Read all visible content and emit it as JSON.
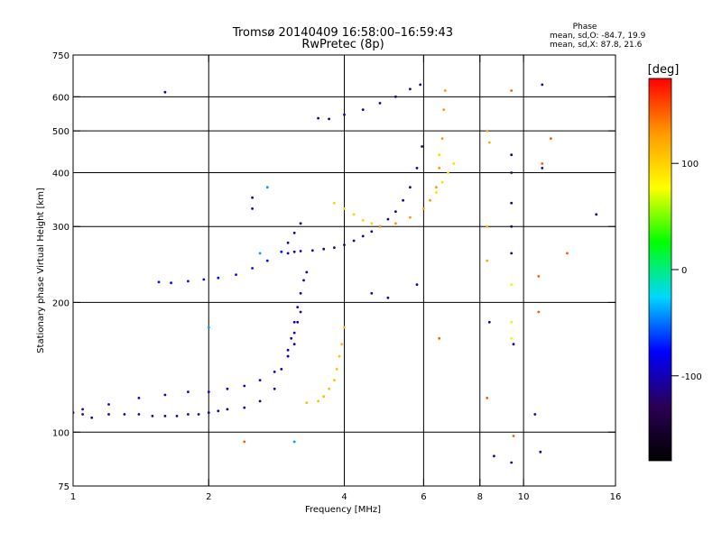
{
  "chart_data": {
    "type": "scatter",
    "title": "Tromsø 20140409 16:58:00–16:59:43",
    "subtitle": "RwPretec (8p)",
    "xlabel": "Frequency [MHz]",
    "ylabel": "Stationary phase Virtual Height [km]",
    "x_scale": "log",
    "y_scale": "log",
    "xlim": [
      1,
      16
    ],
    "ylim": [
      75,
      750
    ],
    "x_ticks": [
      1,
      2,
      4,
      6,
      8,
      10,
      16
    ],
    "x_grid": [
      2,
      4,
      6,
      8,
      10
    ],
    "x_tick_labels": [
      "1",
      "2",
      "4",
      "6",
      "8",
      "10",
      "16"
    ],
    "y_ticks": [
      75,
      100,
      200,
      300,
      400,
      500,
      600,
      750
    ],
    "y_grid": [
      100,
      200,
      300,
      400,
      500,
      600
    ],
    "y_tick_labels": [
      "75",
      "100",
      "200",
      "300",
      "400",
      "500",
      "600",
      "750"
    ],
    "grid": true,
    "stats": {
      "heading": "Phase",
      "line_o": "mean, sd,O: -84.7, 19.9",
      "line_x": "mean, sd,X:  87.8, 21.6"
    },
    "colorbar": {
      "label": "[deg]",
      "range": [
        -180,
        180
      ],
      "ticks": [
        100,
        0,
        -100
      ],
      "tick_labels": [
        "100",
        "0",
        "-100"
      ],
      "colors": [
        "#000000",
        "#2a0055",
        "#0000ff",
        "#00d8ff",
        "#00ff00",
        "#ffff00",
        "#ff9900",
        "#ff0000"
      ]
    },
    "traces": [
      {
        "name": "",
        "phase": -110,
        "points": [
          [
            1.0,
            111
          ],
          [
            1.05,
            110
          ],
          [
            1.1,
            108
          ],
          [
            1.2,
            110
          ],
          [
            1.3,
            110
          ],
          [
            1.4,
            110
          ],
          [
            1.5,
            109
          ],
          [
            1.6,
            109
          ],
          [
            1.7,
            109
          ],
          [
            1.8,
            110
          ],
          [
            1.9,
            110
          ],
          [
            2.0,
            111
          ],
          [
            2.1,
            112
          ],
          [
            2.2,
            113
          ],
          [
            2.4,
            114
          ],
          [
            2.6,
            118
          ],
          [
            2.8,
            126
          ],
          [
            2.9,
            140
          ],
          [
            3.0,
            155
          ],
          [
            3.1,
            170
          ],
          [
            3.15,
            180
          ],
          [
            3.2,
            190
          ]
        ]
      },
      {
        "name": "",
        "phase": -90,
        "points": [
          [
            1.05,
            113
          ],
          [
            1.2,
            116
          ],
          [
            1.4,
            120
          ],
          [
            1.6,
            122
          ],
          [
            1.8,
            124
          ],
          [
            2.0,
            124
          ],
          [
            2.2,
            126
          ],
          [
            2.4,
            128
          ],
          [
            2.6,
            132
          ],
          [
            2.8,
            138
          ],
          [
            3.0,
            150
          ],
          [
            3.1,
            160
          ]
        ]
      },
      {
        "name": "",
        "phase": -100,
        "points": [
          [
            3.0,
            150
          ],
          [
            3.05,
            165
          ],
          [
            3.1,
            180
          ],
          [
            3.15,
            195
          ],
          [
            3.2,
            210
          ],
          [
            3.25,
            225
          ],
          [
            3.3,
            235
          ]
        ]
      },
      {
        "name": "",
        "phase": 110,
        "points": [
          [
            3.3,
            117
          ],
          [
            3.5,
            118
          ],
          [
            3.6,
            121
          ],
          [
            3.7,
            126
          ],
          [
            3.8,
            132
          ],
          [
            3.85,
            140
          ],
          [
            3.9,
            150
          ],
          [
            3.95,
            160
          ],
          [
            4.0,
            175
          ]
        ]
      },
      {
        "name": "",
        "phase": -75,
        "points": [
          [
            1.55,
            223
          ],
          [
            1.65,
            222
          ],
          [
            1.8,
            224
          ],
          [
            1.95,
            226
          ],
          [
            2.1,
            228
          ],
          [
            2.3,
            232
          ],
          [
            2.5,
            240
          ],
          [
            2.7,
            250
          ],
          [
            2.9,
            262
          ]
        ]
      },
      {
        "name": "",
        "phase": -110,
        "points": [
          [
            3.0,
            260
          ],
          [
            3.1,
            262
          ],
          [
            3.2,
            263
          ],
          [
            3.4,
            264
          ],
          [
            3.6,
            266
          ],
          [
            3.8,
            268
          ],
          [
            4.0,
            272
          ],
          [
            4.2,
            278
          ],
          [
            4.4,
            285
          ],
          [
            4.6,
            292
          ],
          [
            4.8,
            300
          ],
          [
            5.0,
            312
          ],
          [
            5.2,
            325
          ],
          [
            5.4,
            345
          ],
          [
            5.6,
            370
          ],
          [
            5.8,
            410
          ],
          [
            5.95,
            460
          ]
        ]
      },
      {
        "name": "",
        "phase": -110,
        "points": [
          [
            3.0,
            275
          ],
          [
            3.1,
            290
          ],
          [
            3.2,
            305
          ]
        ]
      },
      {
        "name": "",
        "phase": 130,
        "points": [
          [
            4.8,
            300
          ],
          [
            5.2,
            305
          ],
          [
            5.6,
            315
          ],
          [
            6.0,
            330
          ],
          [
            6.2,
            345
          ],
          [
            6.4,
            370
          ],
          [
            6.5,
            410
          ],
          [
            6.6,
            480
          ],
          [
            6.65,
            560
          ],
          [
            6.7,
            620
          ]
        ]
      },
      {
        "name": "",
        "phase": 95,
        "points": [
          [
            6.4,
            360
          ],
          [
            6.6,
            380
          ],
          [
            6.8,
            400
          ],
          [
            7.0,
            420
          ],
          [
            6.5,
            440
          ]
        ]
      },
      {
        "name": "",
        "phase": 100,
        "points": [
          [
            3.8,
            340
          ],
          [
            4.0,
            330
          ],
          [
            4.2,
            320
          ],
          [
            4.4,
            310
          ],
          [
            4.6,
            305
          ]
        ]
      },
      {
        "name": "",
        "phase": -110,
        "points": [
          [
            3.5,
            535
          ],
          [
            3.7,
            533
          ],
          [
            4.0,
            545
          ],
          [
            4.4,
            560
          ],
          [
            4.8,
            580
          ],
          [
            5.2,
            600
          ],
          [
            5.6,
            625
          ],
          [
            5.9,
            640
          ]
        ]
      },
      {
        "name": "",
        "phase": 120,
        "points": [
          [
            8.3,
            500
          ],
          [
            8.4,
            470
          ],
          [
            8.3,
            300
          ],
          [
            8.3,
            250
          ]
        ]
      },
      {
        "name": "",
        "phase": -120,
        "points": [
          [
            9.4,
            440
          ],
          [
            9.4,
            400
          ],
          [
            9.4,
            340
          ],
          [
            9.4,
            300
          ],
          [
            9.4,
            260
          ]
        ]
      },
      {
        "name": "",
        "phase": 70,
        "points": [
          [
            9.4,
            220
          ],
          [
            9.4,
            180
          ],
          [
            9.4,
            165
          ]
        ]
      },
      {
        "name": "",
        "phase": -110,
        "points": [
          [
            1.6,
            615
          ],
          [
            2.5,
            330
          ],
          [
            2.5,
            350
          ],
          [
            4.6,
            210
          ],
          [
            5.0,
            205
          ],
          [
            5.8,
            220
          ],
          [
            8.4,
            180
          ],
          [
            8.6,
            88
          ],
          [
            9.4,
            85
          ],
          [
            9.5,
            160
          ],
          [
            10.6,
            110
          ],
          [
            10.9,
            90
          ],
          [
            11.0,
            410
          ],
          [
            11.0,
            640
          ],
          [
            14.5,
            320
          ]
        ]
      },
      {
        "name": "",
        "phase": 150,
        "points": [
          [
            2.4,
            95
          ],
          [
            6.5,
            165
          ],
          [
            8.3,
            120
          ],
          [
            9.5,
            98
          ],
          [
            10.8,
            190
          ],
          [
            10.8,
            230
          ],
          [
            11.0,
            420
          ],
          [
            11.5,
            480
          ],
          [
            12.5,
            260
          ],
          [
            9.4,
            620
          ]
        ]
      },
      {
        "name": "",
        "phase": -40,
        "points": [
          [
            2.6,
            260
          ],
          [
            3.1,
            95
          ],
          [
            2.7,
            370
          ],
          [
            2.0,
            175
          ]
        ]
      }
    ]
  }
}
